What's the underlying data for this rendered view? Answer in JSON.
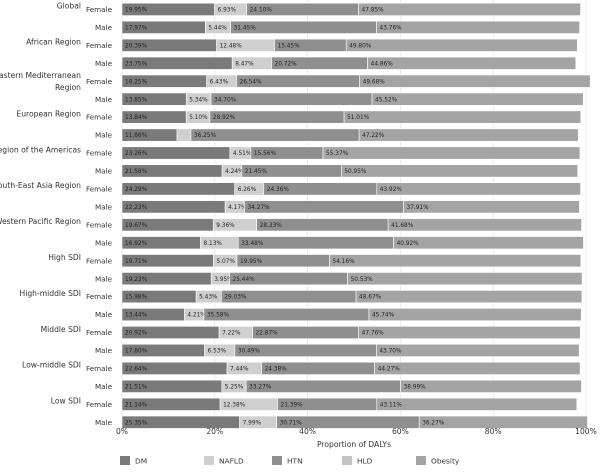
{
  "chart_data": {
    "type": "bar",
    "orientation": "horizontal",
    "stacked": true,
    "xlabel": "Proportion of DALYs",
    "xlim": [
      0,
      100
    ],
    "x_ticks": [
      "0%",
      "20%",
      "40%",
      "60%",
      "80%",
      "100%"
    ],
    "legend_position": "bottom",
    "series": [
      {
        "name": "DM",
        "color": "#7a7a7a"
      },
      {
        "name": "NAFLD",
        "color": "#cfcfcf"
      },
      {
        "name": "HTN",
        "color": "#8f8f8f"
      },
      {
        "name": "HLD",
        "color": "#c4c4c4"
      },
      {
        "name": "Obesity",
        "color": "#a4a4a4"
      }
    ],
    "groups": [
      {
        "name": "Global",
        "bars": [
          {
            "sex": "Female",
            "values": [
              19.95,
              6.93,
              24.1,
              0,
              47.85
            ],
            "labels": [
              "19.95%",
              "6.93%",
              "24.10%",
              "",
              "47.85%"
            ]
          },
          {
            "sex": "Male",
            "values": [
              17.97,
              5.44,
              31.45,
              0,
              43.76
            ],
            "labels": [
              "17.97%",
              "5.44%",
              "31.45%",
              "",
              "43.76%"
            ]
          }
        ]
      },
      {
        "name": "African Region",
        "bars": [
          {
            "sex": "Female",
            "values": [
              20.39,
              12.48,
              15.45,
              0,
              49.8
            ],
            "labels": [
              "20.39%",
              "12.48%",
              "15.45%",
              "",
              "49.80%"
            ]
          },
          {
            "sex": "Male",
            "values": [
              23.75,
              8.47,
              20.72,
              0,
              44.86
            ],
            "labels": [
              "23.75%",
              "8.47%",
              "20.72%",
              "",
              "44.86%"
            ]
          }
        ]
      },
      {
        "name": "Eastern Mediterranean Region",
        "bars": [
          {
            "sex": "Female",
            "values": [
              18.25,
              6.43,
              26.54,
              0,
              49.68
            ],
            "labels": [
              "18.25%",
              "6.43%",
              "26.54%",
              "",
              "49.68%"
            ]
          },
          {
            "sex": "Male",
            "values": [
              13.85,
              5.34,
              34.7,
              0,
              45.52
            ],
            "labels": [
              "13.85%",
              "5.34%",
              "34.70%",
              "",
              "45.52%"
            ]
          }
        ]
      },
      {
        "name": "European Region",
        "bars": [
          {
            "sex": "Female",
            "values": [
              13.84,
              5.1,
              28.92,
              0,
              51.01
            ],
            "labels": [
              "13.84%",
              "5.10%",
              "28.92%",
              "",
              "51.01%"
            ]
          },
          {
            "sex": "Male",
            "values": [
              11.86,
              3.0,
              36.25,
              0,
              47.22
            ],
            "labels": [
              "11.86%",
              "",
              "36.25%",
              "",
              "47.22%"
            ]
          }
        ]
      },
      {
        "name": "Region of the Americas",
        "bars": [
          {
            "sex": "Female",
            "values": [
              23.26,
              4.51,
              15.56,
              0,
              55.37
            ],
            "labels": [
              "23.26%",
              "4.51%",
              "15.56%",
              "",
              "55.37%"
            ]
          },
          {
            "sex": "Male",
            "values": [
              21.58,
              4.24,
              21.45,
              0,
              50.95
            ],
            "labels": [
              "21.58%",
              "4.24%",
              "21.45%",
              "",
              "50.95%"
            ]
          }
        ]
      },
      {
        "name": "South-East Asia Region",
        "bars": [
          {
            "sex": "Female",
            "values": [
              24.29,
              6.26,
              24.36,
              0,
              43.92
            ],
            "labels": [
              "24.29%",
              "6.26%",
              "24.36%",
              "",
              "43.92%"
            ]
          },
          {
            "sex": "Male",
            "values": [
              22.23,
              4.17,
              34.27,
              0,
              37.91
            ],
            "labels": [
              "22.23%",
              "4.17%",
              "34.27%",
              "",
              "37.91%"
            ]
          }
        ]
      },
      {
        "name": "Western Pacific Region",
        "bars": [
          {
            "sex": "Female",
            "values": [
              19.67,
              9.36,
              28.33,
              0,
              41.68
            ],
            "labels": [
              "19.67%",
              "9.36%",
              "28.33%",
              "",
              "41.68%"
            ]
          },
          {
            "sex": "Male",
            "values": [
              16.92,
              8.13,
              33.48,
              0,
              40.92
            ],
            "labels": [
              "16.92%",
              "8.13%",
              "33.48%",
              "",
              "40.92%"
            ]
          }
        ]
      },
      {
        "name": "High SDI",
        "bars": [
          {
            "sex": "Female",
            "values": [
              19.71,
              5.07,
              19.95,
              0,
              54.16
            ],
            "labels": [
              "19.71%",
              "5.07%",
              "19.95%",
              "",
              "54.16%"
            ]
          },
          {
            "sex": "Male",
            "values": [
              19.23,
              3.95,
              25.44,
              0,
              50.53
            ],
            "labels": [
              "19.23%",
              "3.95%",
              "25.44%",
              "",
              "50.53%"
            ]
          }
        ]
      },
      {
        "name": "High-middle SDI",
        "bars": [
          {
            "sex": "Female",
            "values": [
              15.98,
              5.43,
              29.03,
              0,
              48.67
            ],
            "labels": [
              "15.98%",
              "5.43%",
              "29.03%",
              "",
              "48.67%"
            ]
          },
          {
            "sex": "Male",
            "values": [
              13.44,
              4.21,
              35.58,
              0,
              45.74
            ],
            "labels": [
              "13.44%",
              "4.21%",
              "35.58%",
              "",
              "45.74%"
            ]
          }
        ]
      },
      {
        "name": "Middle SDI",
        "bars": [
          {
            "sex": "Female",
            "values": [
              20.92,
              7.22,
              22.87,
              0,
              47.76
            ],
            "labels": [
              "20.92%",
              "7.22%",
              "22.87%",
              "",
              "47.76%"
            ]
          },
          {
            "sex": "Male",
            "values": [
              17.8,
              6.53,
              30.49,
              0,
              43.7
            ],
            "labels": [
              "17.80%",
              "6.53%",
              "30.49%",
              "",
              "43.70%"
            ]
          }
        ]
      },
      {
        "name": "Low-middle SDI",
        "bars": [
          {
            "sex": "Female",
            "values": [
              22.64,
              7.44,
              24.38,
              0,
              44.27
            ],
            "labels": [
              "22.64%",
              "7.44%",
              "24.38%",
              "",
              "44.27%"
            ]
          },
          {
            "sex": "Male",
            "values": [
              21.51,
              5.25,
              33.27,
              0,
              38.99
            ],
            "labels": [
              "21.51%",
              "5.25%",
              "33.27%",
              "",
              "38.99%"
            ]
          }
        ]
      },
      {
        "name": "Low SDI",
        "bars": [
          {
            "sex": "Female",
            "values": [
              21.14,
              12.38,
              21.39,
              0,
              43.11
            ],
            "labels": [
              "21.14%",
              "12.38%",
              "21.39%",
              "",
              "43.11%"
            ]
          },
          {
            "sex": "Male",
            "values": [
              25.35,
              7.99,
              30.71,
              0,
              36.27
            ],
            "labels": [
              "25.35%",
              "7.99%",
              "30.71%",
              "",
              "36.27%"
            ]
          }
        ]
      }
    ]
  }
}
